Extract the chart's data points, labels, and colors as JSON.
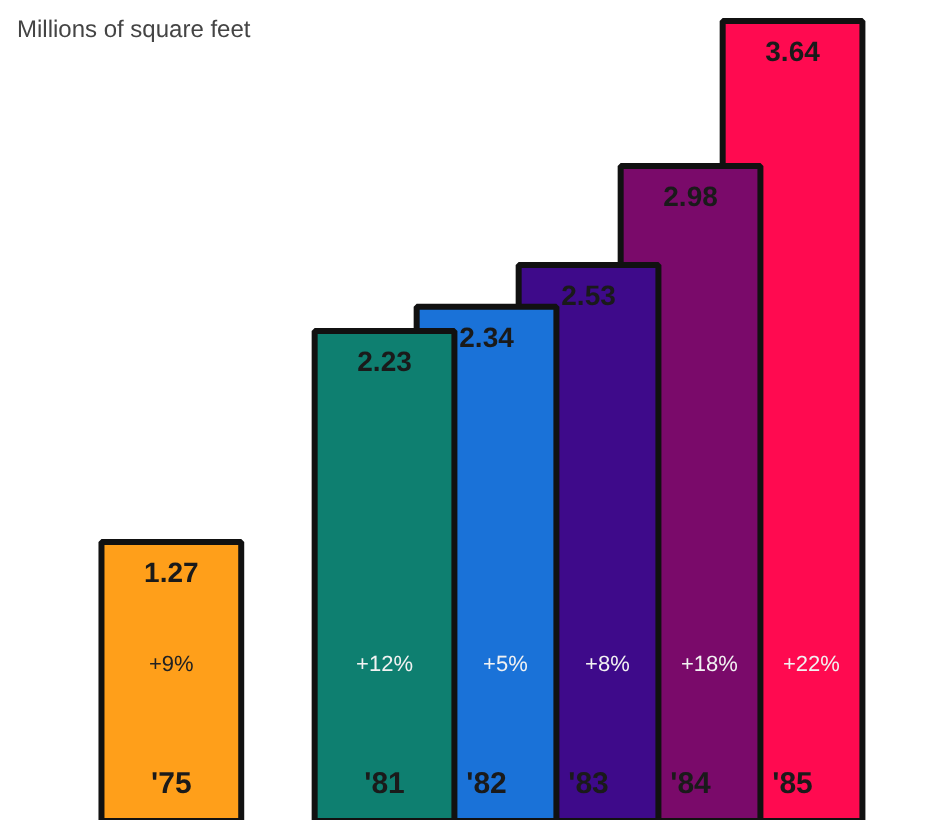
{
  "chart_data": {
    "type": "bar",
    "title": "Millions of square feet",
    "categories": [
      "'75",
      "'81",
      "'82",
      "'83",
      "'84",
      "'85"
    ],
    "values": [
      1.27,
      2.23,
      2.34,
      2.53,
      2.98,
      3.64
    ],
    "colors": [
      "#ff9f1a",
      "#0e7f70",
      "#1a72d8",
      "#3e0a8a",
      "#7a0a6a",
      "#ff0a50"
    ],
    "data_labels": true,
    "annotations": [
      "+9%",
      "+12%",
      "+5%",
      "+8%",
      "+18%",
      "+22%"
    ]
  }
}
